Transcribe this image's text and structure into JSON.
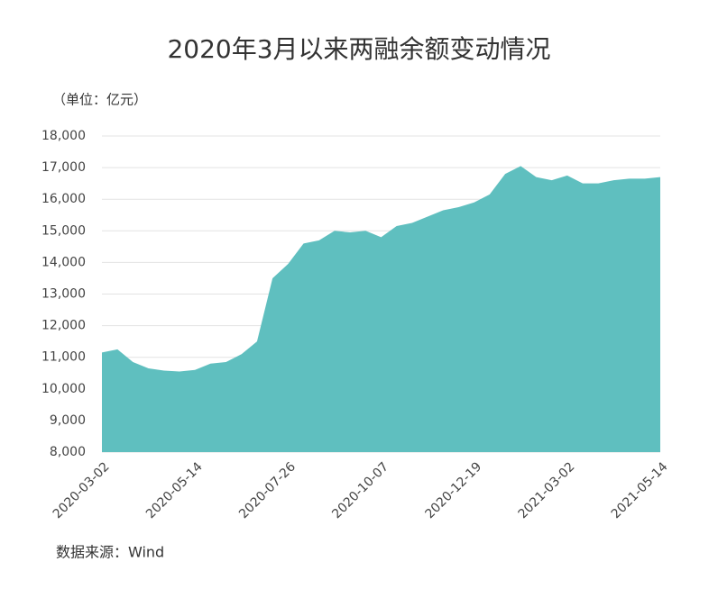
{
  "chart_data": {
    "type": "area",
    "title": "2020年3月以来两融余额变动情况",
    "unit_label": "（单位：亿元）",
    "source": "数据来源：Wind",
    "color": "#5fbfbf",
    "grid": true,
    "ylim": [
      8000,
      18000
    ],
    "yticks": [
      {
        "value": 8000,
        "label": "8,000"
      },
      {
        "value": 9000,
        "label": "9,000"
      },
      {
        "value": 10000,
        "label": "10,000"
      },
      {
        "value": 11000,
        "label": "11,000"
      },
      {
        "value": 12000,
        "label": "12,000"
      },
      {
        "value": 13000,
        "label": "13,000"
      },
      {
        "value": 14000,
        "label": "14,000"
      },
      {
        "value": 15000,
        "label": "15,000"
      },
      {
        "value": 16000,
        "label": "16,000"
      },
      {
        "value": 17000,
        "label": "17,000"
      },
      {
        "value": 18000,
        "label": "18,000"
      }
    ],
    "categories": [
      "2020-03-02",
      null,
      null,
      null,
      null,
      null,
      "2020-05-14",
      null,
      null,
      null,
      null,
      null,
      "2020-07-26",
      null,
      null,
      null,
      null,
      null,
      "2020-10-07",
      null,
      null,
      null,
      null,
      null,
      "2020-12-19",
      null,
      null,
      null,
      null,
      null,
      "2021-03-02",
      null,
      null,
      null,
      null,
      null,
      "2021-05-14"
    ],
    "values": [
      11150,
      11250,
      10850,
      10650,
      10580,
      10550,
      10600,
      10800,
      10850,
      11100,
      11500,
      13500,
      13950,
      14600,
      14700,
      15000,
      14950,
      15000,
      14800,
      15150,
      15250,
      15450,
      15650,
      15750,
      15900,
      16150,
      16800,
      17050,
      16700,
      16600,
      16750,
      16500,
      16500,
      16600,
      16650,
      16650,
      16700
    ]
  }
}
